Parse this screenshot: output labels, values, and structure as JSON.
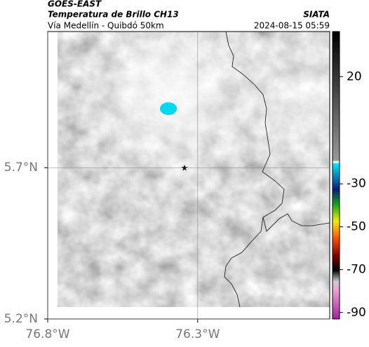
{
  "header": {
    "title": "GOES-EAST",
    "subtitle": "Temperatura de Brillo CH13",
    "source": "SIATA",
    "region": "Vía Medellín - Quibdó 50km",
    "timestamp": "2024-08-15 05:59"
  },
  "map": {
    "xlim": [
      -76.8,
      -75.86
    ],
    "ylim": [
      5.2,
      6.15
    ],
    "xticks": [
      {
        "value": -76.8,
        "label": "76.8°W"
      },
      {
        "value": -76.3,
        "label": "76.3°W"
      }
    ],
    "yticks": [
      {
        "value": 5.2,
        "label": "5.2°N"
      },
      {
        "value": 5.7,
        "label": "5.7°N"
      }
    ],
    "grid": true
  },
  "colorbar": {
    "lim": [
      -93,
      41
    ],
    "ticks": [
      20,
      -30,
      -50,
      -70,
      -90
    ]
  }
}
